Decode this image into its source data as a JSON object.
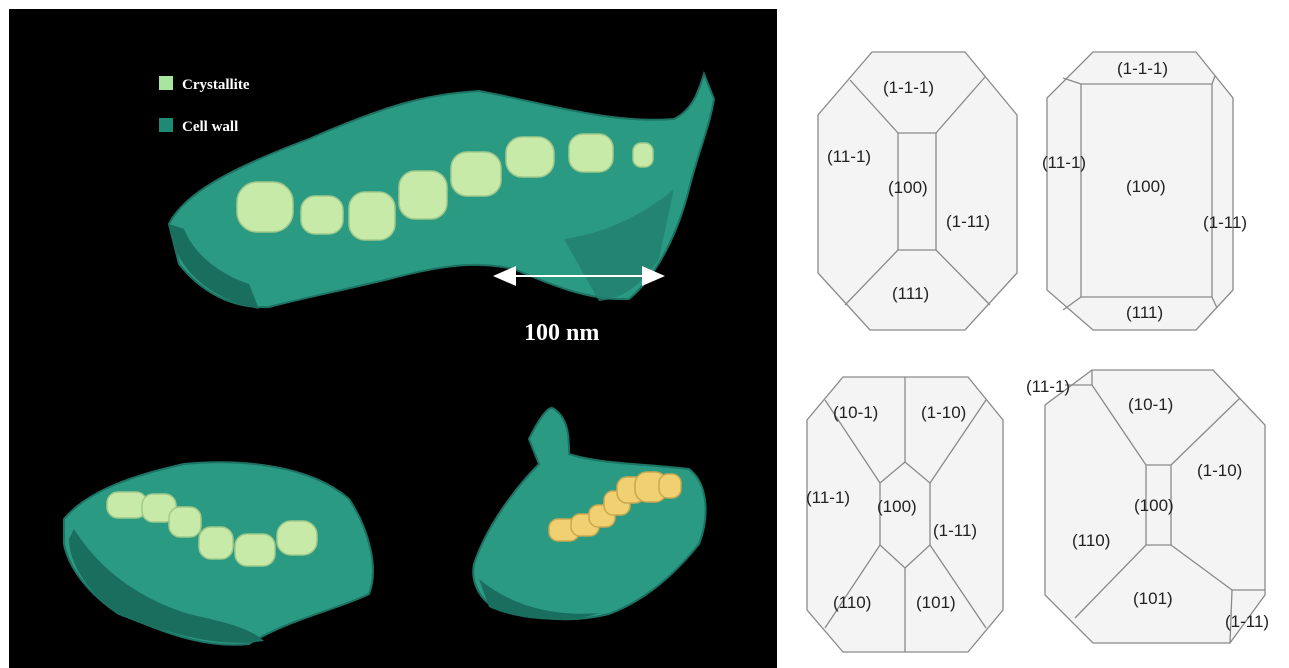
{
  "legend": {
    "items": [
      {
        "label": "Crystallite",
        "color": "#a8e6a0"
      },
      {
        "label": "Cell wall",
        "color": "#1f8a74"
      }
    ]
  },
  "scale_bar": {
    "label": "100 nm"
  },
  "colors": {
    "background": "#000000",
    "cell_wall": "#2a9a83",
    "crystallite": "#c8eaa8",
    "crystallite_highlight": "#f0d070"
  },
  "facet_diagrams": [
    {
      "name": "top-left",
      "labels": [
        "(1-1-1)",
        "(11-1)",
        "(100)",
        "(1-11)",
        "(111)"
      ]
    },
    {
      "name": "top-right",
      "labels": [
        "(1-1-1)",
        "(11-1)",
        "(100)",
        "(1-11)",
        "(111)"
      ]
    },
    {
      "name": "bottom-left",
      "labels": [
        "(10-1)",
        "(1-10)",
        "(11-1)",
        "(100)",
        "(1-11)",
        "(110)",
        "(101)"
      ]
    },
    {
      "name": "bottom-right",
      "labels": [
        "(11-1)",
        "(10-1)",
        "(1-10)",
        "(100)",
        "(110)",
        "(101)",
        "(1-11)"
      ]
    }
  ]
}
